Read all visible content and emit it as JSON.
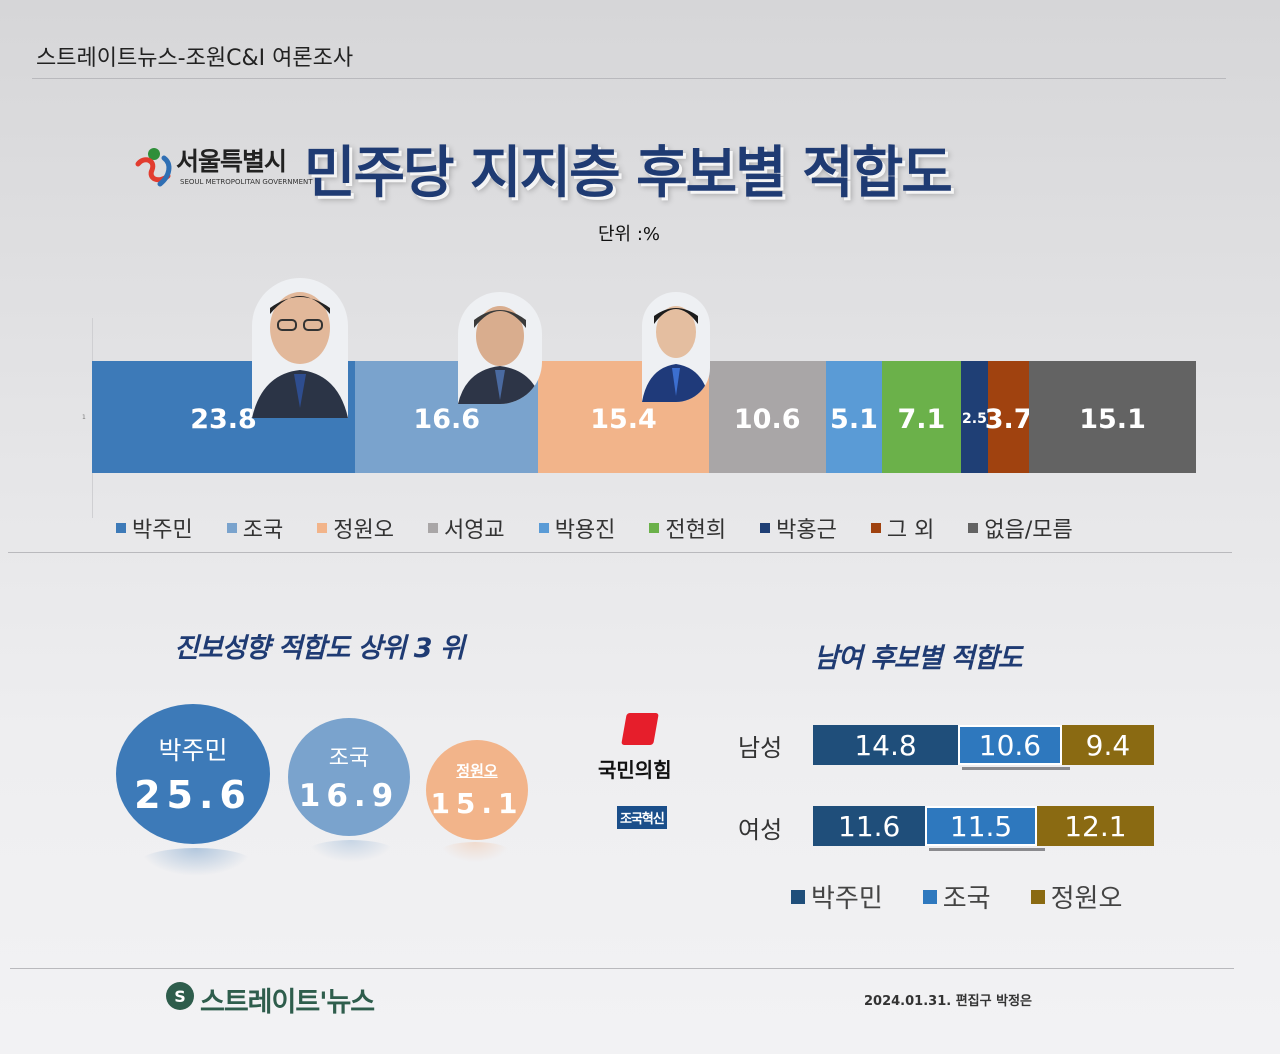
{
  "header": {
    "text": "스트레이트뉴스-조원C&I 여론조사"
  },
  "title": {
    "seoul_name": "서울특별시",
    "seoul_en": "SEOUL METROPOLITAN GOVERNMENT",
    "main": "민주당 지지층 후보별 적합도",
    "unit": "단위 :%"
  },
  "chart_data": [
    {
      "type": "bar",
      "orientation": "horizontal-stacked",
      "axis_tick": "1",
      "series": [
        {
          "name": "박주민",
          "value": 23.8,
          "color": "#3d7ab8"
        },
        {
          "name": "조국",
          "value": 16.6,
          "color": "#7aa3cd"
        },
        {
          "name": "정원오",
          "value": 15.4,
          "color": "#f2b48a"
        },
        {
          "name": "서영교",
          "value": 10.6,
          "color": "#a9a6a7"
        },
        {
          "name": "박용진",
          "value": 5.1,
          "color": "#5a9bd6"
        },
        {
          "name": "전현희",
          "value": 7.1,
          "color": "#6bb14a"
        },
        {
          "name": "박홍근",
          "value": 2.5,
          "color": "#1f3f75"
        },
        {
          "name": "그 외",
          "value": 3.7,
          "color": "#a0420f"
        },
        {
          "name": "없음/모름",
          "value": 15.1,
          "color": "#636363"
        }
      ],
      "legend_position": "bottom"
    },
    {
      "type": "bubble",
      "title": "진보성향 적합도 상위 3 위",
      "items": [
        {
          "name": "박주민",
          "value": "25.6",
          "color": "#3d7ab8"
        },
        {
          "name": "조국",
          "value": "16.9",
          "color": "#7aa3cd"
        },
        {
          "name": "정원오",
          "value": "15.1",
          "color": "#f2b48a"
        }
      ]
    },
    {
      "type": "bar",
      "orientation": "horizontal-stacked",
      "title": "남여 후보별 적합도",
      "categories": [
        "남성",
        "여성"
      ],
      "series": [
        {
          "name": "박주민",
          "values": [
            14.8,
            11.6
          ],
          "color": "#1f4e7a"
        },
        {
          "name": "조국",
          "values": [
            10.6,
            11.5
          ],
          "color": "#2e78be"
        },
        {
          "name": "정원오",
          "values": [
            9.4,
            12.1
          ],
          "color": "#8a6a12"
        }
      ],
      "legend_position": "bottom"
    }
  ],
  "parties": {
    "ppp": "국민의힘",
    "rebuild": "조국혁신"
  },
  "footer": {
    "name": "스트레이트'뉴스",
    "logo_letter": "S",
    "date": "2024.01.31. 편집구 박정은"
  }
}
